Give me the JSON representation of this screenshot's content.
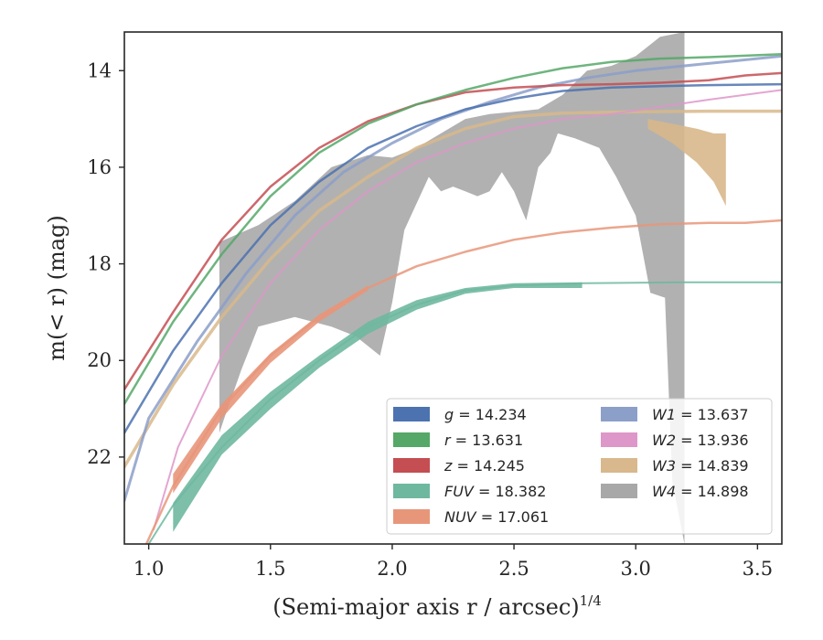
{
  "chart_data": {
    "type": "line",
    "xlabel": "(Semi-major axis r / arcsec)",
    "xlabel_sup": "1/4",
    "ylabel": "m(< r) (mag)",
    "xlim": [
      0.9,
      3.6
    ],
    "ylim": [
      23.8,
      13.2
    ],
    "y_inverted": true,
    "xticks": [
      1.0,
      1.5,
      2.0,
      2.5,
      3.0,
      3.5
    ],
    "xtick_labels": [
      "1.0",
      "1.5",
      "2.0",
      "2.5",
      "3.0",
      "3.5"
    ],
    "yticks": [
      14,
      16,
      18,
      20,
      22
    ],
    "ytick_labels": [
      "14",
      "16",
      "18",
      "20",
      "22"
    ],
    "grid": false,
    "legend_placement": "lower-right",
    "legend_entries": [
      {
        "label": "g = 14.234",
        "color": "#4c72b0"
      },
      {
        "label": "r = 13.631",
        "color": "#55a868"
      },
      {
        "label": "z = 14.245",
        "color": "#c44e52"
      },
      {
        "label": "FUV = 18.382",
        "color": "#6fb8a0"
      },
      {
        "label": "NUV = 17.061",
        "color": "#e8967a"
      },
      {
        "label": "W1 = 13.637",
        "color": "#8c9fc9"
      },
      {
        "label": "W2 = 13.936",
        "color": "#de97c9"
      },
      {
        "label": "W3 = 14.839",
        "color": "#d8b88c"
      },
      {
        "label": "W4 = 14.898",
        "color": "#a8a8a8"
      }
    ],
    "series": [
      {
        "name": "W4 = 14.898",
        "color": "#a8a8a8",
        "kind": "band",
        "upper": [
          [
            1.29,
            17.55
          ],
          [
            1.45,
            17.2
          ],
          [
            1.6,
            16.7
          ],
          [
            1.75,
            16.0
          ],
          [
            1.9,
            15.75
          ],
          [
            2.0,
            15.8
          ],
          [
            2.1,
            15.6
          ],
          [
            2.2,
            15.3
          ],
          [
            2.3,
            15.0
          ],
          [
            2.4,
            14.9
          ],
          [
            2.5,
            14.85
          ],
          [
            2.6,
            14.8
          ],
          [
            2.7,
            14.5
          ],
          [
            2.8,
            14.0
          ],
          [
            2.9,
            13.9
          ],
          [
            3.0,
            13.7
          ],
          [
            3.1,
            13.3
          ],
          [
            3.2,
            13.2
          ]
        ],
        "lower": [
          [
            3.2,
            23.8
          ],
          [
            3.15,
            22.5
          ],
          [
            3.12,
            18.7
          ],
          [
            3.06,
            18.6
          ],
          [
            3.0,
            17.0
          ],
          [
            2.92,
            16.2
          ],
          [
            2.85,
            15.6
          ],
          [
            2.75,
            15.4
          ],
          [
            2.68,
            15.3
          ],
          [
            2.65,
            15.7
          ],
          [
            2.6,
            16.0
          ],
          [
            2.55,
            17.1
          ],
          [
            2.5,
            16.5
          ],
          [
            2.45,
            16.1
          ],
          [
            2.4,
            16.5
          ],
          [
            2.35,
            16.6
          ],
          [
            2.3,
            16.5
          ],
          [
            2.25,
            16.4
          ],
          [
            2.2,
            16.5
          ],
          [
            2.15,
            16.2
          ],
          [
            2.05,
            17.3
          ],
          [
            2.0,
            18.8
          ],
          [
            1.95,
            19.9
          ],
          [
            1.85,
            19.5
          ],
          [
            1.75,
            19.3
          ],
          [
            1.6,
            19.1
          ],
          [
            1.45,
            19.3
          ],
          [
            1.38,
            20.2
          ],
          [
            1.31,
            21.2
          ],
          [
            1.29,
            21.5
          ]
        ]
      },
      {
        "name": "W3 = 14.839",
        "color": "#d8b88c",
        "kind": "band",
        "upper": [
          [
            3.05,
            15.0
          ],
          [
            3.15,
            15.1
          ],
          [
            3.25,
            15.2
          ],
          [
            3.32,
            15.3
          ],
          [
            3.37,
            15.3
          ]
        ],
        "lower": [
          [
            3.37,
            16.8
          ],
          [
            3.32,
            16.3
          ],
          [
            3.25,
            15.9
          ],
          [
            3.15,
            15.5
          ],
          [
            3.05,
            15.2
          ]
        ]
      },
      {
        "name": "W3 = 14.839",
        "color": "#d8b88c",
        "kind": "line",
        "width": 3.5,
        "points": [
          [
            0.9,
            22.2
          ],
          [
            1.1,
            20.5
          ],
          [
            1.3,
            19.1
          ],
          [
            1.5,
            17.9
          ],
          [
            1.7,
            16.9
          ],
          [
            1.9,
            16.2
          ],
          [
            2.1,
            15.6
          ],
          [
            2.3,
            15.2
          ],
          [
            2.5,
            14.95
          ],
          [
            2.7,
            14.88
          ],
          [
            3.0,
            14.85
          ],
          [
            3.3,
            14.84
          ],
          [
            3.6,
            14.84
          ]
        ]
      },
      {
        "name": "W2 = 13.936",
        "color": "#de97c9",
        "kind": "line",
        "width": 2,
        "points": [
          [
            1.02,
            23.5
          ],
          [
            1.12,
            21.8
          ],
          [
            1.3,
            19.9
          ],
          [
            1.5,
            18.4
          ],
          [
            1.7,
            17.3
          ],
          [
            1.9,
            16.5
          ],
          [
            2.1,
            15.9
          ],
          [
            2.3,
            15.5
          ],
          [
            2.5,
            15.2
          ],
          [
            2.7,
            15.0
          ],
          [
            2.9,
            14.9
          ],
          [
            3.1,
            14.75
          ],
          [
            3.3,
            14.6
          ],
          [
            3.6,
            14.4
          ]
        ]
      },
      {
        "name": "W1 = 13.637",
        "color": "#8c9fc9",
        "kind": "line",
        "width": 3,
        "points": [
          [
            0.9,
            22.9
          ],
          [
            1.0,
            21.2
          ],
          [
            1.2,
            19.6
          ],
          [
            1.4,
            18.2
          ],
          [
            1.6,
            17.0
          ],
          [
            1.8,
            16.1
          ],
          [
            2.0,
            15.5
          ],
          [
            2.2,
            15.0
          ],
          [
            2.4,
            14.65
          ],
          [
            2.6,
            14.35
          ],
          [
            2.8,
            14.15
          ],
          [
            3.0,
            14.0
          ],
          [
            3.2,
            13.9
          ],
          [
            3.4,
            13.8
          ],
          [
            3.6,
            13.7
          ]
        ]
      },
      {
        "name": "z = 14.245",
        "color": "#c44e52",
        "kind": "line",
        "width": 2.5,
        "points": [
          [
            0.9,
            20.6
          ],
          [
            1.1,
            19.0
          ],
          [
            1.3,
            17.5
          ],
          [
            1.5,
            16.4
          ],
          [
            1.7,
            15.6
          ],
          [
            1.9,
            15.05
          ],
          [
            2.1,
            14.7
          ],
          [
            2.3,
            14.45
          ],
          [
            2.5,
            14.35
          ],
          [
            2.7,
            14.3
          ],
          [
            2.9,
            14.28
          ],
          [
            3.1,
            14.25
          ],
          [
            3.3,
            14.2
          ],
          [
            3.45,
            14.1
          ],
          [
            3.6,
            14.05
          ]
        ]
      },
      {
        "name": "r = 13.631",
        "color": "#55a868",
        "kind": "line",
        "width": 2.5,
        "points": [
          [
            0.9,
            20.9
          ],
          [
            1.1,
            19.2
          ],
          [
            1.3,
            17.8
          ],
          [
            1.5,
            16.6
          ],
          [
            1.7,
            15.7
          ],
          [
            1.9,
            15.1
          ],
          [
            2.1,
            14.7
          ],
          [
            2.3,
            14.4
          ],
          [
            2.5,
            14.15
          ],
          [
            2.7,
            13.95
          ],
          [
            2.9,
            13.82
          ],
          [
            3.1,
            13.75
          ],
          [
            3.3,
            13.72
          ],
          [
            3.6,
            13.66
          ]
        ]
      },
      {
        "name": "g = 14.234",
        "color": "#4c72b0",
        "kind": "line",
        "width": 2.5,
        "points": [
          [
            0.9,
            21.5
          ],
          [
            1.1,
            19.8
          ],
          [
            1.3,
            18.4
          ],
          [
            1.5,
            17.2
          ],
          [
            1.7,
            16.3
          ],
          [
            1.9,
            15.6
          ],
          [
            2.1,
            15.15
          ],
          [
            2.3,
            14.8
          ],
          [
            2.5,
            14.58
          ],
          [
            2.7,
            14.42
          ],
          [
            2.9,
            14.35
          ],
          [
            3.1,
            14.32
          ],
          [
            3.3,
            14.3
          ],
          [
            3.6,
            14.28
          ]
        ]
      },
      {
        "name": "NUV = 17.061",
        "color": "#e8967a",
        "kind": "line",
        "width": 2.5,
        "points": [
          [
            0.99,
            23.8
          ],
          [
            1.1,
            22.6
          ],
          [
            1.3,
            21.0
          ],
          [
            1.5,
            19.9
          ],
          [
            1.7,
            19.1
          ],
          [
            1.9,
            18.5
          ],
          [
            2.1,
            18.05
          ],
          [
            2.3,
            17.75
          ],
          [
            2.5,
            17.5
          ],
          [
            2.7,
            17.35
          ],
          [
            2.9,
            17.25
          ],
          [
            3.1,
            17.18
          ],
          [
            3.3,
            17.15
          ],
          [
            3.45,
            17.15
          ],
          [
            3.6,
            17.1
          ]
        ]
      },
      {
        "name": "NUV = 17.061",
        "color": "#e8967a",
        "kind": "band",
        "upper": [
          [
            1.1,
            22.35
          ],
          [
            1.3,
            20.9
          ],
          [
            1.5,
            19.85
          ],
          [
            1.7,
            19.05
          ],
          [
            1.9,
            18.45
          ]
        ],
        "lower": [
          [
            1.9,
            18.55
          ],
          [
            1.7,
            19.2
          ],
          [
            1.5,
            20.05
          ],
          [
            1.3,
            21.2
          ],
          [
            1.1,
            22.75
          ]
        ]
      },
      {
        "name": "FUV = 18.382",
        "color": "#6fb8a0",
        "kind": "line",
        "width": 2,
        "points": [
          [
            1.0,
            23.8
          ],
          [
            1.1,
            23.0
          ],
          [
            1.3,
            21.8
          ],
          [
            1.5,
            20.8
          ],
          [
            1.7,
            20.0
          ],
          [
            1.9,
            19.3
          ],
          [
            2.1,
            18.85
          ],
          [
            2.3,
            18.55
          ],
          [
            2.5,
            18.45
          ],
          [
            2.8,
            18.4
          ],
          [
            3.2,
            18.38
          ],
          [
            3.6,
            18.38
          ]
        ]
      },
      {
        "name": "FUV = 18.382",
        "color": "#6fb8a0",
        "kind": "band",
        "upper": [
          [
            1.1,
            22.95
          ],
          [
            1.3,
            21.55
          ],
          [
            1.5,
            20.65
          ],
          [
            1.7,
            19.9
          ],
          [
            1.9,
            19.2
          ],
          [
            2.1,
            18.75
          ],
          [
            2.3,
            18.5
          ],
          [
            2.5,
            18.4
          ],
          [
            2.78,
            18.38
          ]
        ],
        "lower": [
          [
            2.78,
            18.5
          ],
          [
            2.5,
            18.5
          ],
          [
            2.3,
            18.62
          ],
          [
            2.1,
            18.95
          ],
          [
            1.9,
            19.45
          ],
          [
            1.7,
            20.15
          ],
          [
            1.5,
            21.0
          ],
          [
            1.3,
            21.95
          ],
          [
            1.1,
            23.55
          ]
        ]
      }
    ]
  }
}
